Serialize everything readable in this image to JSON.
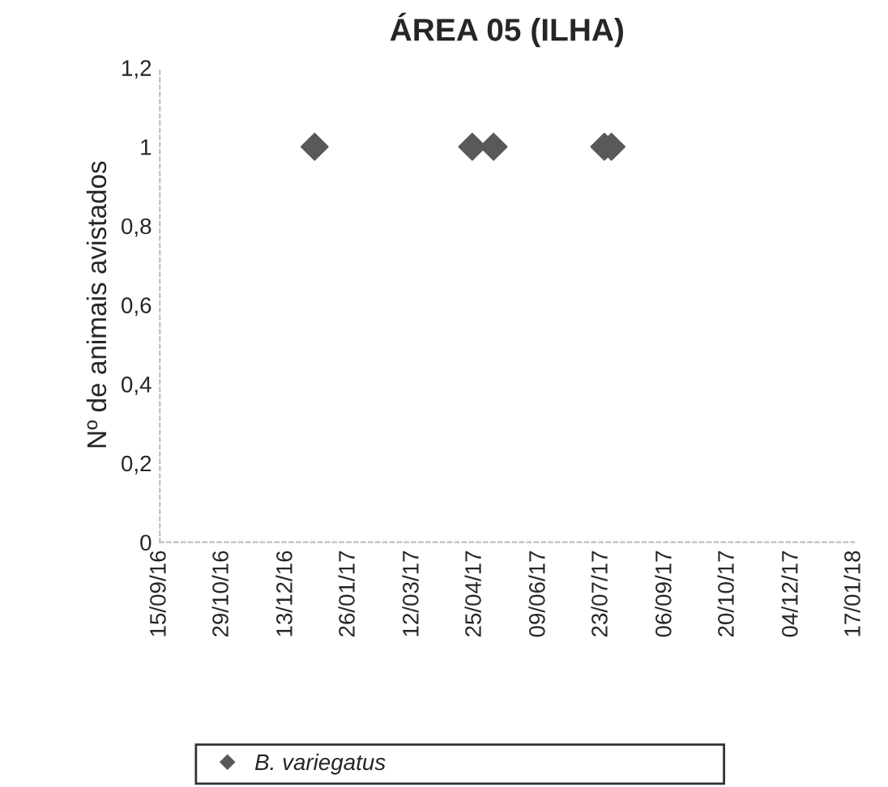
{
  "chart_data": {
    "type": "scatter",
    "title": "ÁREA 05 (ILHA)",
    "ylabel": "Nº de animais avistados",
    "x": [
      "2017-01-02",
      "2017-04-23",
      "2017-05-08",
      "2017-07-25",
      "2017-07-30"
    ],
    "series": [
      {
        "name": "B. variegatus",
        "color": "#595959",
        "values": [
          1,
          1,
          1,
          1,
          1
        ]
      }
    ],
    "xlim": [
      "2016-09-15",
      "2018-01-17"
    ],
    "xticks": [
      {
        "value": "2016-09-15",
        "label": "15/09/16"
      },
      {
        "value": "2016-10-29",
        "label": "29/10/16"
      },
      {
        "value": "2016-12-13",
        "label": "13/12/16"
      },
      {
        "value": "2017-01-26",
        "label": "26/01/17"
      },
      {
        "value": "2017-03-12",
        "label": "12/03/17"
      },
      {
        "value": "2017-04-25",
        "label": "25/04/17"
      },
      {
        "value": "2017-06-09",
        "label": "09/06/17"
      },
      {
        "value": "2017-07-23",
        "label": "23/07/17"
      },
      {
        "value": "2017-09-06",
        "label": "06/09/17"
      },
      {
        "value": "2017-10-20",
        "label": "20/10/17"
      },
      {
        "value": "2017-12-04",
        "label": "04/12/17"
      },
      {
        "value": "2018-01-17",
        "label": "17/01/18"
      }
    ],
    "ylim": [
      0,
      1.2
    ],
    "yticks": [
      0,
      {
        "value": 0.2,
        "label": "0,2"
      },
      {
        "value": 0.4,
        "label": "0,4"
      },
      {
        "value": 0.6,
        "label": "0,6"
      },
      {
        "value": 0.8,
        "label": "0,8"
      },
      1,
      {
        "value": 1.2,
        "label": "1,2"
      }
    ],
    "grid": false,
    "legend": "bottom",
    "marker": "diamond"
  }
}
